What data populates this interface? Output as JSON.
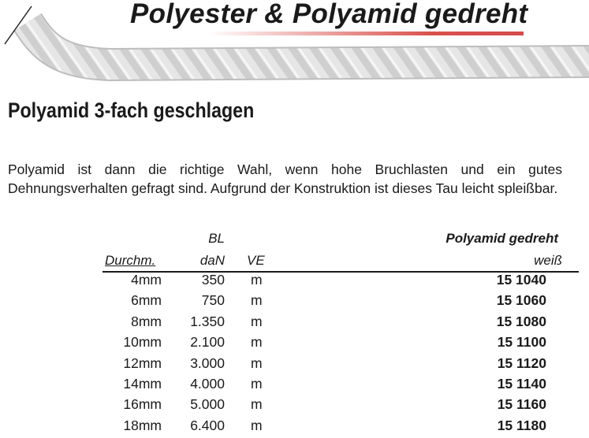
{
  "header": {
    "title": "Polyester & Polyamid gedreht",
    "accent_color": "#d9534f"
  },
  "section": {
    "heading": "Polyamid 3-fach geschlagen",
    "description": "Polyamid ist dann die richtige Wahl, wenn hohe Bruchlasten und ein gutes Dehnungsverhalten gefragt sind. Aufgrund der Konstruktion ist dieses Tau leicht spleißbar."
  },
  "table": {
    "headers": {
      "diameter": "Durchm.",
      "bl": "BL",
      "dan": "daN",
      "ve": "VE",
      "product": "Polyamid gedreht",
      "color": "weiß"
    },
    "rows": [
      {
        "diameter": "4mm",
        "dan": "350",
        "ve": "m",
        "article": "15 1040"
      },
      {
        "diameter": "6mm",
        "dan": "750",
        "ve": "m",
        "article": "15 1060"
      },
      {
        "diameter": "8mm",
        "dan": "1.350",
        "ve": "m",
        "article": "15 1080"
      },
      {
        "diameter": "10mm",
        "dan": "2.100",
        "ve": "m",
        "article": "15 1100"
      },
      {
        "diameter": "12mm",
        "dan": "3.000",
        "ve": "m",
        "article": "15 1120"
      },
      {
        "diameter": "14mm",
        "dan": "4.000",
        "ve": "m",
        "article": "15 1140"
      },
      {
        "diameter": "16mm",
        "dan": "5.000",
        "ve": "m",
        "article": "15 1160"
      },
      {
        "diameter": "18mm",
        "dan": "6.400",
        "ve": "m",
        "article": "15 1180"
      }
    ]
  }
}
